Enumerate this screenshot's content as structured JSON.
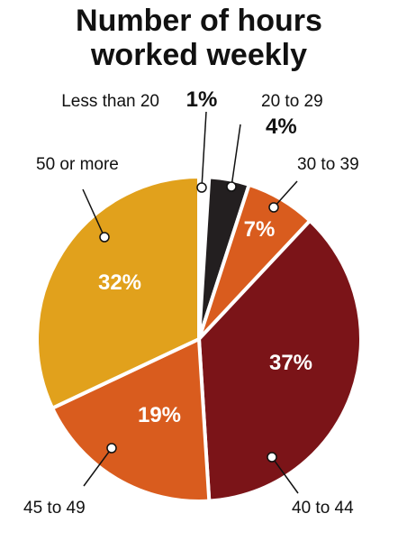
{
  "chart_data": {
    "type": "pie",
    "title": "Number of hours\nworked weekly",
    "slices": [
      {
        "label": "Less than 20",
        "value": 1,
        "value_label": "1%",
        "color": "#ffffff"
      },
      {
        "label": "20 to 29",
        "value": 4,
        "value_label": "4%",
        "color": "#231f20"
      },
      {
        "label": "30 to 39",
        "value": 7,
        "value_label": "7%",
        "color": "#d95c1e"
      },
      {
        "label": "40 to 44",
        "value": 37,
        "value_label": "37%",
        "color": "#7b1418"
      },
      {
        "label": "45 to 49",
        "value": 19,
        "value_label": "19%",
        "color": "#d95c1e"
      },
      {
        "label": "50 or more",
        "value": 32,
        "value_label": "32%",
        "color": "#e1a11c"
      }
    ],
    "start": "top",
    "direction": "clockwise"
  }
}
